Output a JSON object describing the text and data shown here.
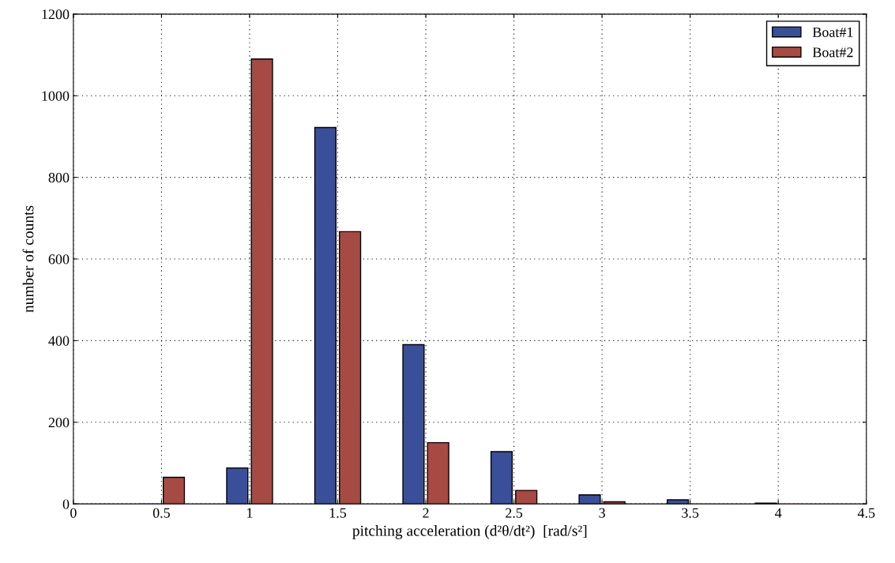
{
  "chart_data": {
    "type": "bar",
    "xlabel": "pitching acceleration (d²θ/dt²)  [rad/s²]",
    "ylabel": "number of counts",
    "x": [
      0.5,
      1,
      1.5,
      2,
      2.5,
      3,
      3.5,
      4
    ],
    "series": [
      {
        "name": "Boat#1",
        "color": "#3a4f9a",
        "values": [
          0,
          88,
          922,
          390,
          128,
          22,
          10,
          2
        ]
      },
      {
        "name": "Boat#2",
        "color": "#a84a44",
        "values": [
          65,
          1090,
          667,
          150,
          33,
          5,
          0,
          0
        ]
      }
    ],
    "xlim": [
      0,
      4.5
    ],
    "xticks": [
      0,
      0.5,
      1,
      1.5,
      2,
      2.5,
      3,
      3.5,
      4,
      4.5
    ],
    "ylim": [
      0,
      1200
    ],
    "yticks": [
      0,
      200,
      400,
      600,
      800,
      1000,
      1200
    ],
    "grid": true,
    "legend": "top right"
  }
}
